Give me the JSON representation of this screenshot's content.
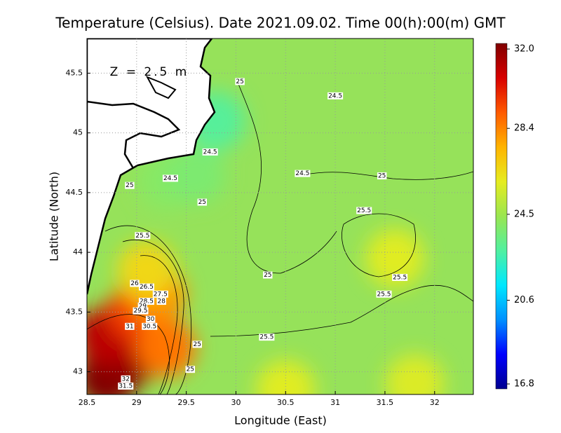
{
  "chart_data": {
    "type": "contour-map",
    "title": "Temperature (Celsius). Date 2021.09.02. Time 00(h):00(m) GMT",
    "x_label": "Longitude (East)",
    "y_label": "Latitude (North)",
    "annotation": "Z = 2.5 m",
    "xlim": [
      28.5,
      32.39
    ],
    "ylim": [
      42.81,
      45.79
    ],
    "xticks": [
      28.5,
      29,
      29.5,
      30,
      30.5,
      31,
      31.5,
      32
    ],
    "yticks": [
      43,
      43.5,
      44,
      44.5,
      45,
      45.5
    ],
    "grid": true,
    "clim": [
      16.8,
      32
    ],
    "cticks": [
      16.8,
      20.6,
      24.5,
      28.4,
      {
        "value": 32,
        "label": "32.0"
      }
    ],
    "colormap": [
      "#00008f",
      "#0000ff",
      "#0090ff",
      "#00e8ff",
      "#50f0a0",
      "#9ae650",
      "#e6ec20",
      "#ffb400",
      "#ff5a00",
      "#d80000",
      "#800000"
    ],
    "field": [
      {
        "x": 28.7,
        "y": 42.95,
        "value": 32
      },
      {
        "x": 28.9,
        "y": 43.1,
        "value": 31.8
      },
      {
        "x": 29.05,
        "y": 43.3,
        "value": 31
      },
      {
        "x": 28.7,
        "y": 43.3,
        "value": 31
      },
      {
        "x": 29.0,
        "y": 43.5,
        "value": 29.5
      },
      {
        "x": 29.2,
        "y": 43.65,
        "value": 28
      },
      {
        "x": 29.1,
        "y": 43.85,
        "value": 26.5
      },
      {
        "x": 29.3,
        "y": 43.2,
        "value": 28.5
      },
      {
        "x": 29.3,
        "y": 44.6,
        "value": 24
      },
      {
        "x": 29.6,
        "y": 44.65,
        "value": 23.8
      },
      {
        "x": 29.8,
        "y": 45.1,
        "value": 23
      },
      {
        "x": 31.6,
        "y": 43.95,
        "value": 25.8
      },
      {
        "x": 30.5,
        "y": 42.85,
        "value": 25.8
      },
      {
        "x": 31.8,
        "y": 42.9,
        "value": 25.7
      }
    ],
    "contour_labels": [
      {
        "x": 30.04,
        "y": 45.43,
        "value": 25
      },
      {
        "x": 31.0,
        "y": 45.31,
        "value": 24.5
      },
      {
        "x": 29.74,
        "y": 44.84,
        "value": 24.5
      },
      {
        "x": 29.34,
        "y": 44.62,
        "value": 24.5
      },
      {
        "x": 28.93,
        "y": 44.56,
        "value": 25
      },
      {
        "x": 30.67,
        "y": 44.66,
        "value": 24.5
      },
      {
        "x": 31.47,
        "y": 44.64,
        "value": 25
      },
      {
        "x": 29.66,
        "y": 44.42,
        "value": 25
      },
      {
        "x": 31.29,
        "y": 44.35,
        "value": 25.5
      },
      {
        "x": 29.06,
        "y": 44.14,
        "value": 25.5
      },
      {
        "x": 30.32,
        "y": 43.81,
        "value": 25
      },
      {
        "x": 31.65,
        "y": 43.79,
        "value": 25.5
      },
      {
        "x": 31.49,
        "y": 43.65,
        "value": 25.5
      },
      {
        "x": 28.98,
        "y": 43.74,
        "value": 26
      },
      {
        "x": 29.1,
        "y": 43.71,
        "value": 26.5
      },
      {
        "x": 29.24,
        "y": 43.65,
        "value": 27.5
      },
      {
        "x": 29.1,
        "y": 43.59,
        "value": 28.5
      },
      {
        "x": 29.25,
        "y": 43.59,
        "value": 28
      },
      {
        "x": 29.06,
        "y": 43.55,
        "value": 29
      },
      {
        "x": 29.04,
        "y": 43.51,
        "value": 29.5
      },
      {
        "x": 29.14,
        "y": 43.44,
        "value": 30
      },
      {
        "x": 29.13,
        "y": 43.38,
        "value": 30.5
      },
      {
        "x": 28.93,
        "y": 43.38,
        "value": 31
      },
      {
        "x": 29.61,
        "y": 43.23,
        "value": 25
      },
      {
        "x": 30.31,
        "y": 43.29,
        "value": 25.5
      },
      {
        "x": 29.54,
        "y": 43.02,
        "value": 25
      },
      {
        "x": 28.89,
        "y": 42.94,
        "value": 32
      },
      {
        "x": 28.89,
        "y": 42.88,
        "value": 31.5
      }
    ]
  }
}
